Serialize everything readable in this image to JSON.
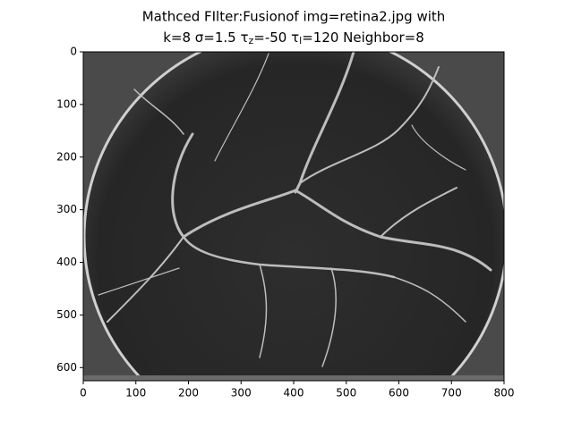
{
  "chart_data": {
    "type": "image",
    "title": [
      "Mathced FIlter:Fusionof img=retina2.jpg with",
      [
        "k=8 σ=1.5 τ",
        "z",
        "=-50 τ",
        "l",
        "=120 Neighbor=8"
      ]
    ],
    "xlim": [
      0,
      800
    ],
    "ylim": [
      625,
      0
    ],
    "xticks": [
      0,
      100,
      200,
      300,
      400,
      500,
      600,
      700,
      800
    ],
    "yticks": [
      0,
      100,
      200,
      300,
      400,
      500,
      600
    ]
  }
}
